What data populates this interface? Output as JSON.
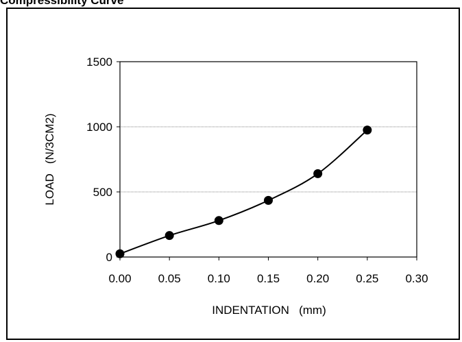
{
  "page": {
    "title": "Compressibility Curve"
  },
  "chart_data": {
    "type": "scatter",
    "title": "Compressibility Curve",
    "xlabel": "INDENTATION   (mm)",
    "ylabel": "LOAD   (N/3CM2)",
    "xlim": [
      0,
      0.3
    ],
    "ylim": [
      0,
      1500
    ],
    "x_ticks": [
      "0.00",
      "0.05",
      "0.10",
      "0.15",
      "0.20",
      "0.25",
      "0.30"
    ],
    "y_ticks": [
      "0",
      "500",
      "1000",
      "1500"
    ],
    "grid": {
      "x": false,
      "y": true,
      "style": "dotted"
    },
    "legend": "none",
    "line": "smoothed",
    "series": [
      {
        "x": [
          0.0,
          0.05,
          0.1,
          0.15,
          0.2,
          0.25
        ],
        "y": [
          25,
          165,
          280,
          435,
          640,
          975
        ]
      }
    ],
    "colors": {
      "marker": "#000000",
      "line": "#000000",
      "grid": "#808080"
    }
  }
}
